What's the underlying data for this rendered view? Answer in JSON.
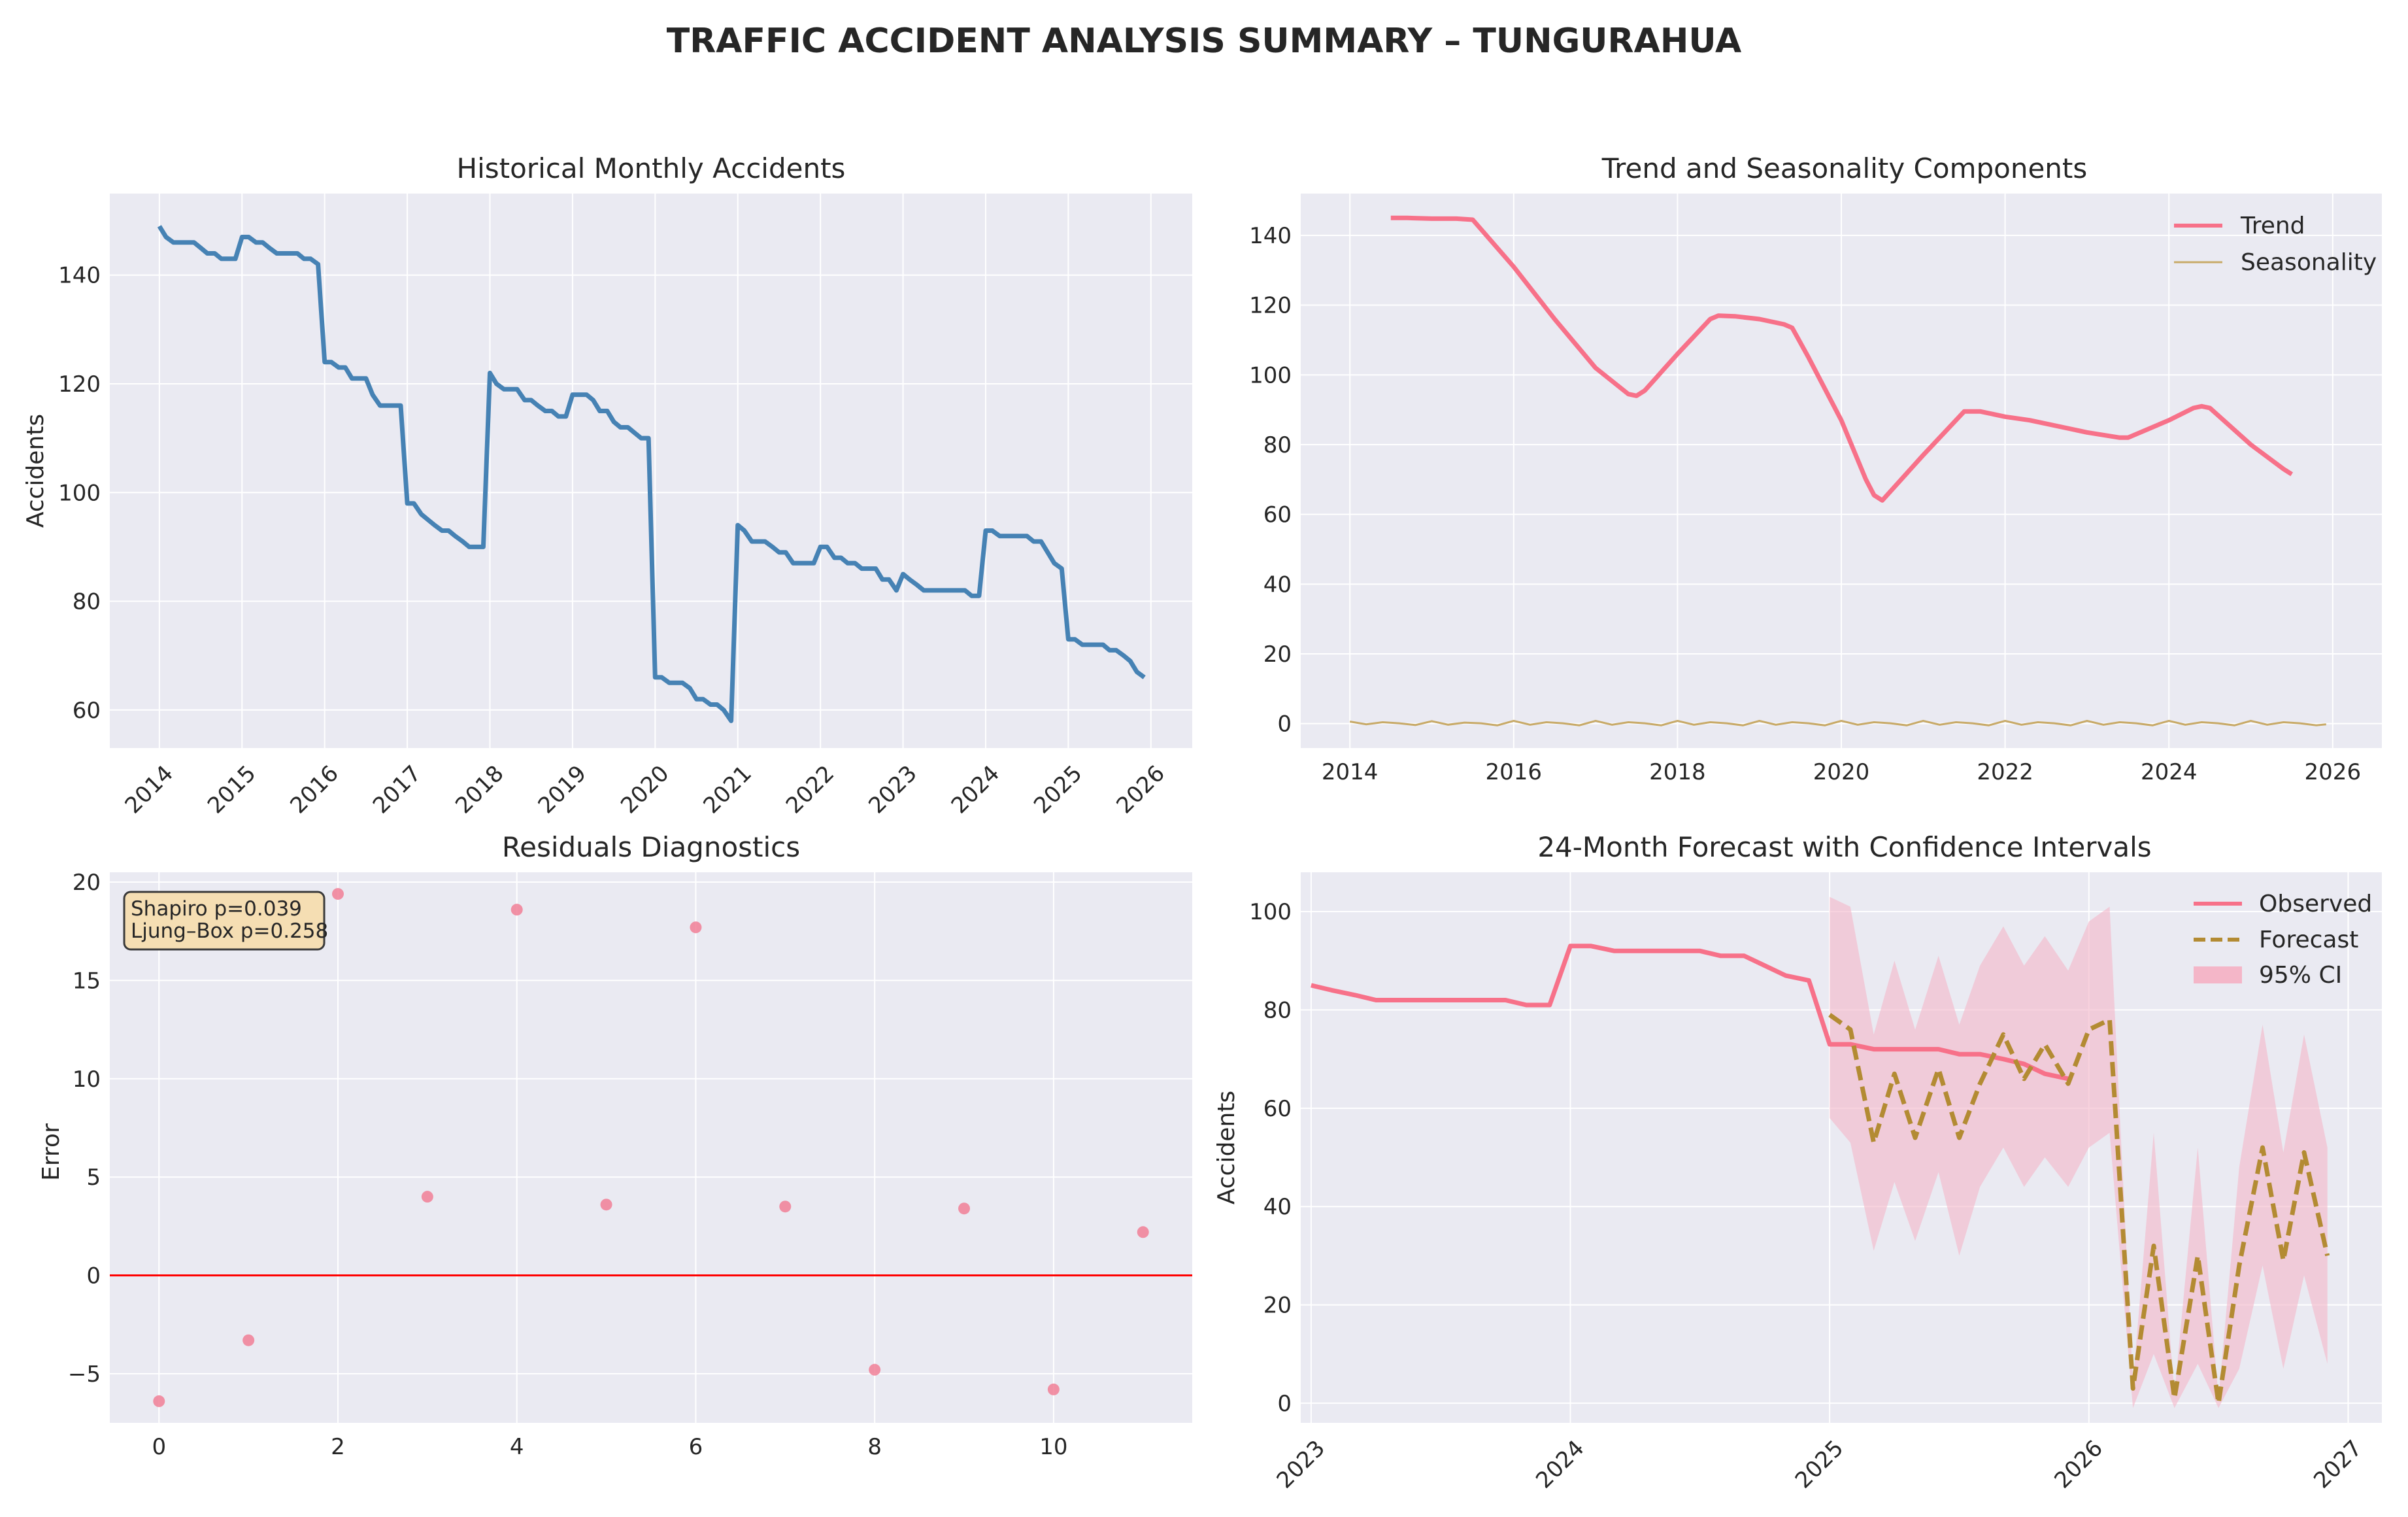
{
  "title": "TRAFFIC ACCIDENT ANALYSIS SUMMARY – TUNGURAHUA",
  "colors": {
    "historical": "#4682b4",
    "trend": "#f77189",
    "seasonality": "#c8aa68",
    "forecast": "#b38b33",
    "ci": "#f4b6c8",
    "residual_points": "#f17f96",
    "zero_line": "#ff0000",
    "plot_bg": "#eaeaf2",
    "stats_box": "#f5deb3"
  },
  "chart_data": [
    {
      "id": "historical",
      "type": "line",
      "title": "Historical Monthly Accidents",
      "xlabel": "",
      "ylabel": "Accidents",
      "xlim": [
        2013.4,
        2026.5
      ],
      "ylim": [
        53,
        155
      ],
      "xticks": [
        2014,
        2015,
        2016,
        2017,
        2018,
        2019,
        2020,
        2021,
        2022,
        2023,
        2024,
        2025,
        2026
      ],
      "xtick_labels": [
        "2014",
        "2015",
        "2016",
        "2017",
        "2018",
        "2019",
        "2020",
        "2021",
        "2022",
        "2023",
        "2024",
        "2025",
        "2026"
      ],
      "yticks": [
        60,
        80,
        100,
        120,
        140
      ],
      "ytick_labels": [
        "60",
        "80",
        "100",
        "120",
        "140"
      ],
      "series": [
        {
          "x": [
            2014.0,
            2014.08,
            2014.17,
            2014.25,
            2014.33,
            2014.42,
            2014.5,
            2014.58,
            2014.67,
            2014.75,
            2014.83,
            2014.92,
            2015.0,
            2015.08,
            2015.17,
            2015.25,
            2015.33,
            2015.42,
            2015.5,
            2015.58,
            2015.67,
            2015.75,
            2015.83,
            2015.92,
            2016.0,
            2016.08,
            2016.17,
            2016.25,
            2016.33,
            2016.42,
            2016.5,
            2016.58,
            2016.67,
            2016.75,
            2016.83,
            2016.92,
            2017.0,
            2017.08,
            2017.17,
            2017.25,
            2017.33,
            2017.42,
            2017.5,
            2017.58,
            2017.67,
            2017.75,
            2017.83,
            2017.92,
            2018.0,
            2018.08,
            2018.17,
            2018.25,
            2018.33,
            2018.42,
            2018.5,
            2018.58,
            2018.67,
            2018.75,
            2018.83,
            2018.92,
            2019.0,
            2019.08,
            2019.17,
            2019.25,
            2019.33,
            2019.42,
            2019.5,
            2019.58,
            2019.67,
            2019.75,
            2019.83,
            2019.92,
            2020.0,
            2020.08,
            2020.17,
            2020.25,
            2020.33,
            2020.42,
            2020.5,
            2020.58,
            2020.67,
            2020.75,
            2020.83,
            2020.92,
            2021.0,
            2021.08,
            2021.17,
            2021.25,
            2021.33,
            2021.42,
            2021.5,
            2021.58,
            2021.67,
            2021.75,
            2021.83,
            2021.92,
            2022.0,
            2022.08,
            2022.17,
            2022.25,
            2022.33,
            2022.42,
            2022.5,
            2022.58,
            2022.67,
            2022.75,
            2022.83,
            2022.92,
            2023.0,
            2023.08,
            2023.17,
            2023.25,
            2023.33,
            2023.42,
            2023.5,
            2023.58,
            2023.67,
            2023.75,
            2023.83,
            2023.92,
            2024.0,
            2024.08,
            2024.17,
            2024.25,
            2024.33,
            2024.42,
            2024.5,
            2024.58,
            2024.67,
            2024.75,
            2024.83,
            2024.92,
            2025.0,
            2025.08,
            2025.17,
            2025.25,
            2025.33,
            2025.42,
            2025.5,
            2025.58,
            2025.67,
            2025.75,
            2025.83,
            2025.92
          ],
          "y": [
            149,
            147,
            146,
            146,
            146,
            146,
            145,
            144,
            144,
            143,
            143,
            143,
            147,
            147,
            146,
            146,
            145,
            144,
            144,
            144,
            144,
            143,
            143,
            142,
            124,
            124,
            123,
            123,
            121,
            121,
            121,
            118,
            116,
            116,
            116,
            116,
            98,
            98,
            96,
            95,
            94,
            93,
            93,
            92,
            91,
            90,
            90,
            90,
            122,
            120,
            119,
            119,
            119,
            117,
            117,
            116,
            115,
            115,
            114,
            114,
            118,
            118,
            118,
            117,
            115,
            115,
            113,
            112,
            112,
            111,
            110,
            110,
            66,
            66,
            65,
            65,
            65,
            64,
            62,
            62,
            61,
            61,
            60,
            58,
            94,
            93,
            91,
            91,
            91,
            90,
            89,
            89,
            87,
            87,
            87,
            87,
            90,
            90,
            88,
            88,
            87,
            87,
            86,
            86,
            86,
            84,
            84,
            82,
            85,
            84,
            83,
            82,
            82,
            82,
            82,
            82,
            82,
            82,
            81,
            81,
            93,
            93,
            92,
            92,
            92,
            92,
            92,
            91,
            91,
            89,
            87,
            86,
            73,
            73,
            72,
            72,
            72,
            72,
            71,
            71,
            70,
            69,
            67,
            66
          ]
        }
      ]
    },
    {
      "id": "components",
      "type": "line",
      "title": "Trend and Seasonality Components",
      "xlabel": "",
      "ylabel": "",
      "xlim": [
        2013.4,
        2026.6
      ],
      "ylim": [
        -7,
        152
      ],
      "xticks": [
        2014,
        2016,
        2018,
        2020,
        2022,
        2024,
        2026
      ],
      "xtick_labels": [
        "2014",
        "2016",
        "2018",
        "2020",
        "2022",
        "2024",
        "2026"
      ],
      "yticks": [
        0,
        20,
        40,
        60,
        80,
        100,
        120,
        140
      ],
      "ytick_labels": [
        "0",
        "20",
        "40",
        "60",
        "80",
        "100",
        "120",
        "140"
      ],
      "legend": "top-right",
      "series": [
        {
          "name": "Trend",
          "x": [
            2014.5,
            2014.7,
            2015.0,
            2015.3,
            2015.5,
            2016.0,
            2016.5,
            2017.0,
            2017.4,
            2017.5,
            2017.6,
            2018.0,
            2018.4,
            2018.5,
            2018.7,
            2019.0,
            2019.3,
            2019.4,
            2019.6,
            2020.0,
            2020.3,
            2020.4,
            2020.5,
            2021.0,
            2021.5,
            2021.7,
            2022.0,
            2022.3,
            2023.0,
            2023.4,
            2023.5,
            2024.0,
            2024.3,
            2024.4,
            2024.5,
            2025.0,
            2025.4,
            2025.5
          ],
          "y": [
            145,
            145,
            144.8,
            144.8,
            144.5,
            131,
            116,
            102,
            94.5,
            94,
            95.5,
            106,
            116,
            117,
            116.8,
            116,
            114.5,
            113.5,
            105,
            87,
            70,
            65.5,
            64,
            77,
            89.5,
            89.5,
            88,
            87,
            83.5,
            82,
            82,
            87,
            90.5,
            91,
            90.5,
            80,
            73,
            71.5
          ]
        },
        {
          "name": "Seasonality",
          "x": [
            2014.0,
            2014.2,
            2014.4,
            2014.6,
            2014.8,
            2015.0,
            2015.2,
            2015.4,
            2015.6,
            2015.8,
            2016.0,
            2016.2,
            2016.4,
            2016.6,
            2016.8,
            2017.0,
            2017.2,
            2017.4,
            2017.6,
            2017.8,
            2018.0,
            2018.2,
            2018.4,
            2018.6,
            2018.8,
            2019.0,
            2019.2,
            2019.4,
            2019.6,
            2019.8,
            2020.0,
            2020.2,
            2020.4,
            2020.6,
            2020.8,
            2021.0,
            2021.2,
            2021.4,
            2021.6,
            2021.8,
            2022.0,
            2022.2,
            2022.4,
            2022.6,
            2022.8,
            2023.0,
            2023.2,
            2023.4,
            2023.6,
            2023.8,
            2024.0,
            2024.2,
            2024.4,
            2024.6,
            2024.8,
            2025.0,
            2025.2,
            2025.4,
            2025.6,
            2025.8,
            2025.92
          ],
          "y": [
            0.6,
            -0.2,
            0.4,
            0.1,
            -0.4,
            0.7,
            -0.3,
            0.3,
            0.1,
            -0.5,
            0.8,
            -0.3,
            0.4,
            0.1,
            -0.5,
            0.8,
            -0.3,
            0.4,
            0.1,
            -0.5,
            0.8,
            -0.3,
            0.4,
            0.1,
            -0.5,
            0.8,
            -0.3,
            0.4,
            0.1,
            -0.5,
            0.8,
            -0.3,
            0.4,
            0.1,
            -0.5,
            0.8,
            -0.3,
            0.4,
            0.1,
            -0.5,
            0.8,
            -0.3,
            0.4,
            0.1,
            -0.5,
            0.8,
            -0.3,
            0.4,
            0.1,
            -0.5,
            0.8,
            -0.3,
            0.4,
            0.1,
            -0.5,
            0.8,
            -0.3,
            0.4,
            0.1,
            -0.5,
            -0.2
          ]
        }
      ]
    },
    {
      "id": "residuals",
      "type": "scatter",
      "title": "Residuals Diagnostics",
      "xlabel": "",
      "ylabel": "Error",
      "xlim": [
        -0.55,
        11.55
      ],
      "ylim": [
        -7.5,
        20.5
      ],
      "xticks": [
        0,
        2,
        4,
        6,
        8,
        10
      ],
      "xtick_labels": [
        "0",
        "2",
        "4",
        "6",
        "8",
        "10"
      ],
      "yticks": [
        -5,
        0,
        5,
        10,
        15,
        20
      ],
      "ytick_labels": [
        "−5",
        "0",
        "5",
        "10",
        "15",
        "20"
      ],
      "reference_line_y": 0,
      "annotation": [
        "Shapiro p=0.039",
        "Ljung–Box p=0.258"
      ],
      "series": [
        {
          "x": [
            0,
            1,
            2,
            3,
            4,
            5,
            6,
            7,
            8,
            9,
            10,
            11
          ],
          "y": [
            -6.4,
            -3.3,
            19.4,
            4.0,
            18.6,
            3.6,
            17.7,
            3.5,
            -4.8,
            3.4,
            -5.8,
            2.2
          ]
        }
      ]
    },
    {
      "id": "forecast",
      "type": "line",
      "title": "24-Month Forecast with Confidence Intervals",
      "xlabel": "",
      "ylabel": "Accidents",
      "xlim": [
        2022.96,
        2027.13
      ],
      "ylim": [
        -4,
        108
      ],
      "xticks": [
        2023,
        2024,
        2025,
        2026,
        2027
      ],
      "xtick_labels": [
        "2023",
        "2024",
        "2025",
        "2026",
        "2027"
      ],
      "yticks": [
        0,
        20,
        40,
        60,
        80,
        100
      ],
      "ytick_labels": [
        "0",
        "20",
        "40",
        "60",
        "80",
        "100"
      ],
      "legend": "top-right",
      "series": [
        {
          "name": "Observed",
          "x": [
            2023.0,
            2023.08,
            2023.17,
            2023.25,
            2023.33,
            2023.42,
            2023.5,
            2023.58,
            2023.67,
            2023.75,
            2023.83,
            2023.92,
            2024.0,
            2024.08,
            2024.17,
            2024.25,
            2024.33,
            2024.42,
            2024.5,
            2024.58,
            2024.67,
            2024.75,
            2024.83,
            2024.92,
            2025.0,
            2025.08,
            2025.17,
            2025.25,
            2025.33,
            2025.42,
            2025.5,
            2025.58,
            2025.67,
            2025.75,
            2025.83,
            2025.92
          ],
          "y": [
            85,
            84,
            83,
            82,
            82,
            82,
            82,
            82,
            82,
            82,
            81,
            81,
            93,
            93,
            92,
            92,
            92,
            92,
            92,
            91,
            91,
            89,
            87,
            86,
            73,
            73,
            72,
            72,
            72,
            72,
            71,
            71,
            70,
            69,
            67,
            66
          ]
        },
        {
          "name": "Forecast",
          "x": [
            2025.0,
            2025.08,
            2025.17,
            2025.25,
            2025.33,
            2025.42,
            2025.5,
            2025.58,
            2025.67,
            2025.75,
            2025.83,
            2025.92,
            2026.0,
            2026.08,
            2026.17,
            2026.25,
            2026.33,
            2026.42,
            2026.5,
            2026.58,
            2026.67,
            2026.75,
            2026.83,
            2026.92
          ],
          "y": [
            79,
            76,
            53,
            67,
            54,
            68,
            54,
            65,
            75,
            66,
            73,
            65,
            76,
            78,
            3,
            32,
            1,
            30,
            0,
            28,
            52,
            29,
            51,
            30
          ],
          "ci_lower": [
            58,
            53,
            31,
            45,
            33,
            47,
            30,
            44,
            52,
            44,
            50,
            44,
            52,
            55,
            -1,
            10,
            -1,
            8,
            -1,
            7,
            28,
            7,
            26,
            8
          ],
          "ci_upper": [
            103,
            101,
            75,
            90,
            76,
            91,
            77,
            89,
            97,
            89,
            95,
            88,
            98,
            101,
            4,
            55,
            2,
            52,
            1,
            48,
            77,
            51,
            75,
            52
          ]
        },
        {
          "name": "95% CI"
        }
      ]
    }
  ]
}
